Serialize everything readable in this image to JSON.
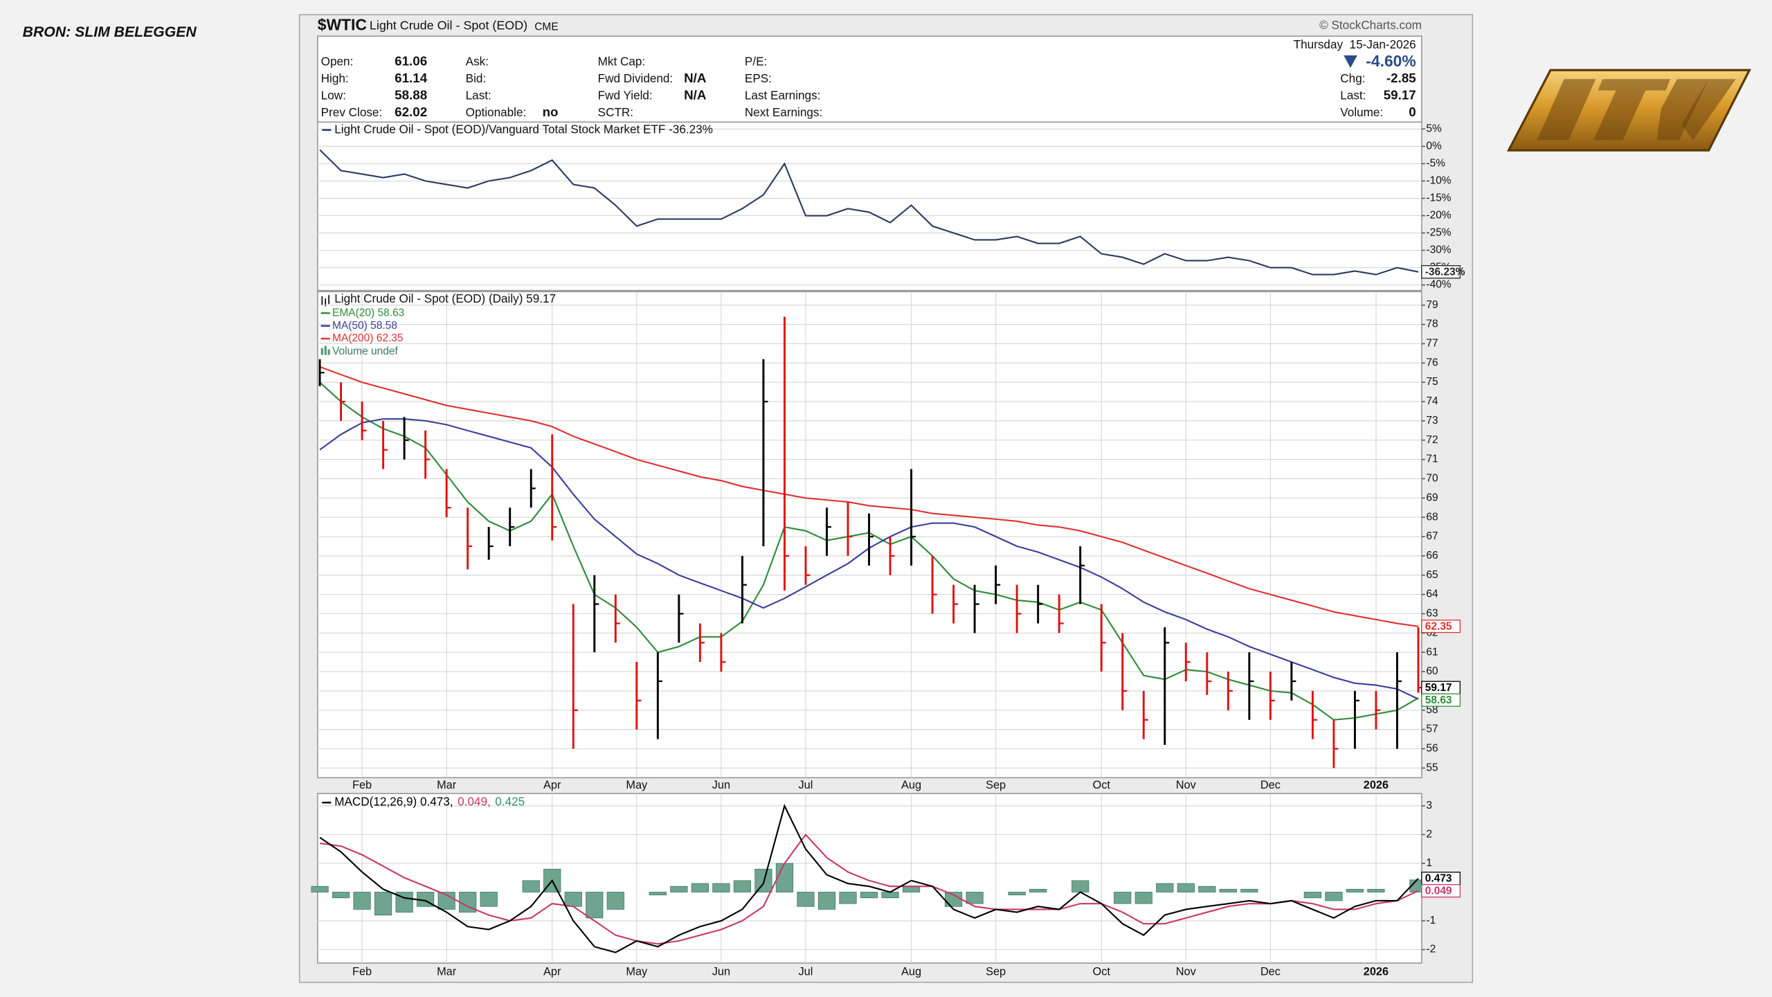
{
  "source": "BRON: SLIM BELEGGEN",
  "header": {
    "symbol": "$WTIC",
    "name": "Light Crude Oil - Spot (EOD)",
    "exchange": "CME",
    "credit": "© StockCharts.com"
  },
  "quote": {
    "columns": [
      [
        {
          "label": "Open:",
          "value": 61.06
        },
        {
          "label": "High:",
          "value": 61.14
        },
        {
          "label": "Low:",
          "value": 58.88
        },
        {
          "label": "Prev Close:",
          "value": 62.02
        }
      ],
      [
        {
          "label": "Ask:"
        },
        {
          "label": "Bid:"
        },
        {
          "label": "Last:"
        },
        {
          "label": "Optionable:",
          "value": "no"
        }
      ],
      [
        {
          "label": "Mkt Cap:"
        },
        {
          "label": "Fwd Dividend:",
          "value": "N/A"
        },
        {
          "label": "Fwd Yield:",
          "value": "N/A"
        },
        {
          "label": "SCTR:"
        }
      ],
      [
        {
          "label": "P/E:"
        },
        {
          "label": "EPS:"
        },
        {
          "label": "Last Earnings:"
        },
        {
          "label": "Next Earnings:"
        }
      ]
    ],
    "date": "Thursday  15-Jan-2026",
    "change_pct": "-4.60%",
    "right": [
      {
        "label": "Chg:",
        "value": -2.85
      },
      {
        "label": "Last:",
        "value": 59.17
      },
      {
        "label": "Volume:",
        "value": 0
      }
    ]
  },
  "chart_data": [
    {
      "type": "line",
      "title": "Light Crude Oil - Spot (EOD)/Vanguard Total Stock Market ETF -36.23%",
      "ylim": [
        -41.6,
        7
      ],
      "yticks": [
        {
          "value": 5,
          "label": "5%"
        },
        {
          "value": 0,
          "label": "0%"
        },
        {
          "value": -5,
          "label": "-5%"
        },
        {
          "value": -10,
          "label": "-10%"
        },
        {
          "value": -15,
          "label": "-15%"
        },
        {
          "value": -20,
          "label": "-20%"
        },
        {
          "value": -25,
          "label": "-25%"
        },
        {
          "value": -30,
          "label": "-30%"
        },
        {
          "value": -35,
          "label": "-35%"
        },
        {
          "value": -40,
          "label": "-40%"
        }
      ],
      "grid": true,
      "series": [
        {
          "color": "#2b3a5e",
          "last_label": "-36.23%",
          "values": [
            -1,
            -7,
            -8,
            -9,
            -8,
            -10,
            -11,
            -12,
            -10,
            -9,
            -7,
            -4,
            -11,
            -12,
            -17,
            -23,
            -21,
            -21,
            -21,
            -21,
            -18,
            -14,
            -5,
            -20,
            -20,
            -18,
            -19,
            -22,
            -17,
            -23,
            -25,
            -27,
            -27,
            -26,
            -28,
            -28,
            -26,
            -31,
            -32,
            -34,
            -31,
            -33,
            -33,
            -32,
            -33,
            -35,
            -35,
            -37,
            -37,
            -36,
            -37,
            -35,
            -36.23
          ]
        }
      ]
    },
    {
      "type": "ohlc",
      "title": "Light Crude Oil - Spot (EOD) (Daily) 59.17",
      "volume_label": "Volume undef",
      "categories": [
        null,
        null,
        "Feb",
        null,
        null,
        null,
        "Mar",
        null,
        null,
        null,
        null,
        "Apr",
        null,
        null,
        null,
        "May",
        null,
        null,
        null,
        "Jun",
        null,
        null,
        null,
        "Jul",
        null,
        null,
        null,
        null,
        "Aug",
        null,
        null,
        null,
        "Sep",
        null,
        null,
        null,
        null,
        "Oct",
        null,
        null,
        null,
        "Nov",
        null,
        null,
        null,
        "Dec",
        null,
        null,
        null,
        null,
        "2026",
        null,
        null
      ],
      "ylim": [
        54.5,
        79.7
      ],
      "yticks": [
        55,
        56,
        57,
        58,
        59,
        60,
        61,
        62,
        63,
        64,
        65,
        66,
        67,
        68,
        69,
        70,
        71,
        72,
        73,
        74,
        75,
        76,
        77,
        78,
        79
      ],
      "grid": true,
      "up_color": "#000000",
      "down_color": "#e01010",
      "ohlc": {
        "high": [
          76.2,
          75,
          74,
          73,
          73.2,
          72.5,
          70.5,
          68.5,
          67.5,
          68.5,
          70.5,
          72.3,
          63.5,
          65,
          64,
          60.5,
          61,
          64,
          62.5,
          62,
          66,
          76.2,
          78.4,
          66.5,
          68.5,
          68.8,
          68.2,
          67,
          70.5,
          66,
          64.5,
          64.5,
          65.5,
          64.5,
          64.5,
          64,
          66.5,
          63.5,
          62,
          59,
          62.3,
          61.5,
          61,
          60,
          61,
          60,
          60.5,
          59,
          57.5,
          59,
          59,
          61,
          62.3
        ],
        "low": [
          74.8,
          73,
          72,
          70.5,
          71,
          70,
          68,
          65.3,
          65.8,
          66.5,
          68.5,
          66.8,
          56,
          61,
          61.5,
          57,
          56.5,
          61.5,
          60.5,
          60,
          62.5,
          66.5,
          64.2,
          64.5,
          66,
          66,
          65.5,
          65,
          65.5,
          63,
          62.5,
          62,
          63.5,
          62,
          62.5,
          62,
          63.5,
          60,
          58,
          56.5,
          56.2,
          59.5,
          58.8,
          58,
          57.5,
          57.5,
          58.5,
          56.5,
          55,
          56,
          57,
          56,
          58.9
        ],
        "close": [
          75.5,
          74,
          72.5,
          71.5,
          72,
          71,
          68.5,
          66.5,
          66.5,
          67.5,
          69.5,
          67.5,
          58,
          63.5,
          62.5,
          58.5,
          59.5,
          63,
          61.5,
          60.5,
          64.5,
          74,
          66,
          65,
          67.5,
          67,
          67,
          66,
          67,
          64,
          63.5,
          63.5,
          64.5,
          63,
          63.5,
          62.5,
          65.5,
          61.5,
          59,
          57.5,
          61.5,
          60.5,
          59.5,
          59,
          59.5,
          58.5,
          59.5,
          57.5,
          56,
          58.5,
          58,
          59.5,
          59.17
        ]
      },
      "series": [
        {
          "name": "EMA(20) 58.63",
          "color": "#2e8b3a",
          "show_last": true,
          "values": [
            75,
            74,
            73.2,
            72.6,
            72.2,
            71.6,
            70.2,
            68.8,
            67.8,
            67.3,
            67.8,
            69.2,
            66.5,
            64,
            63.3,
            62.3,
            61,
            61.3,
            61.8,
            61.8,
            62.6,
            64.5,
            67.5,
            67.3,
            66.8,
            67,
            67.2,
            66.6,
            67,
            66,
            64.8,
            64.2,
            64,
            63.7,
            63.6,
            63.2,
            63.6,
            63.2,
            61.5,
            59.8,
            59.6,
            60.1,
            60,
            59.6,
            59.3,
            59,
            58.9,
            58.3,
            57.5,
            57.6,
            57.8,
            58,
            58.63
          ]
        },
        {
          "name": "MA(50) 58.58",
          "color": "#3b3f9c",
          "show_last": false,
          "values": [
            71.5,
            72.3,
            72.9,
            73.1,
            73.1,
            73,
            72.8,
            72.5,
            72.2,
            71.9,
            71.6,
            70.6,
            69.2,
            67.9,
            67,
            66.1,
            65.6,
            65,
            64.6,
            64.2,
            63.8,
            63.3,
            63.8,
            64.4,
            65,
            65.6,
            66.4,
            67,
            67.5,
            67.7,
            67.7,
            67.5,
            67,
            66.5,
            66.2,
            65.8,
            65.4,
            64.9,
            64.3,
            63.6,
            63.1,
            62.7,
            62.2,
            61.8,
            61.3,
            60.9,
            60.5,
            60.1,
            59.7,
            59.4,
            59.3,
            59.1,
            58.58
          ]
        },
        {
          "name": "MA(200) 62.35",
          "color": "#e03030",
          "show_last": true,
          "values": [
            75.8,
            75.4,
            75,
            74.7,
            74.4,
            74.1,
            73.8,
            73.6,
            73.4,
            73.2,
            73,
            72.7,
            72.2,
            71.8,
            71.4,
            71,
            70.7,
            70.4,
            70.1,
            69.9,
            69.6,
            69.4,
            69.2,
            69,
            68.9,
            68.8,
            68.6,
            68.5,
            68.4,
            68.2,
            68.1,
            68,
            67.9,
            67.8,
            67.6,
            67.5,
            67.3,
            67,
            66.7,
            66.3,
            65.9,
            65.5,
            65.1,
            64.7,
            64.3,
            64,
            63.7,
            63.4,
            63.1,
            62.9,
            62.7,
            62.5,
            62.35
          ]
        }
      ]
    },
    {
      "type": "macd",
      "legend": [
        {
          "text": "MACD(12,26,9) 0.473,",
          "color": "#000000"
        },
        {
          "text": "0.049,",
          "color": "#c8386a"
        },
        {
          "text": "0.425",
          "color": "#3a8a70"
        }
      ],
      "categories": [
        null,
        null,
        "Feb",
        null,
        null,
        null,
        "Mar",
        null,
        null,
        null,
        null,
        "Apr",
        null,
        null,
        null,
        "May",
        null,
        null,
        null,
        "Jun",
        null,
        null,
        null,
        "Jul",
        null,
        null,
        null,
        null,
        "Aug",
        null,
        null,
        null,
        "Sep",
        null,
        null,
        null,
        null,
        "Oct",
        null,
        null,
        null,
        "Nov",
        null,
        null,
        null,
        "Dec",
        null,
        null,
        null,
        null,
        "2026",
        null,
        null
      ],
      "ylim": [
        -2.47,
        3.43
      ],
      "yticks": [
        3,
        2,
        1,
        -1,
        -2
      ],
      "grid": true,
      "series": [
        {
          "color": "#000000",
          "show_last": true,
          "values": [
            1.9,
            1.4,
            0.7,
            0.1,
            -0.2,
            -0.3,
            -0.7,
            -1.2,
            -1.3,
            -1,
            -0.5,
            0.4,
            -1,
            -1.9,
            -2.1,
            -1.7,
            -1.9,
            -1.5,
            -1.2,
            -1,
            -0.6,
            0.3,
            3,
            1.5,
            0.6,
            0.3,
            0.2,
            0,
            0.4,
            0.2,
            -0.6,
            -0.9,
            -0.6,
            -0.7,
            -0.5,
            -0.6,
            0,
            -0.4,
            -1.1,
            -1.5,
            -0.8,
            -0.6,
            -0.5,
            -0.4,
            -0.3,
            -0.4,
            -0.3,
            -0.6,
            -0.9,
            -0.5,
            -0.3,
            -0.3,
            0.473
          ]
        },
        {
          "color": "#c8386a",
          "show_last": true,
          "values": [
            1.7,
            1.6,
            1.3,
            0.9,
            0.5,
            0.2,
            -0.1,
            -0.5,
            -0.8,
            -1,
            -0.9,
            -0.4,
            -0.5,
            -1,
            -1.5,
            -1.7,
            -1.8,
            -1.7,
            -1.5,
            -1.3,
            -1,
            -0.5,
            1,
            2,
            1.2,
            0.7,
            0.4,
            0.2,
            0.2,
            0.2,
            -0.1,
            -0.5,
            -0.6,
            -0.6,
            -0.6,
            -0.6,
            -0.4,
            -0.4,
            -0.7,
            -1.1,
            -1.1,
            -0.9,
            -0.7,
            -0.5,
            -0.4,
            -0.4,
            -0.3,
            -0.4,
            -0.6,
            -0.6,
            -0.4,
            -0.3,
            0.049
          ]
        }
      ],
      "histogram": {
        "color": "#6fa590",
        "values": [
          0.2,
          -0.2,
          -0.6,
          -0.8,
          -0.7,
          -0.5,
          -0.6,
          -0.7,
          -0.5,
          0,
          0.4,
          0.8,
          -0.5,
          -0.9,
          -0.6,
          0,
          -0.1,
          0.2,
          0.3,
          0.3,
          0.4,
          0.8,
          1,
          -0.5,
          -0.6,
          -0.4,
          -0.2,
          -0.2,
          0.2,
          0,
          -0.5,
          -0.4,
          0,
          -0.1,
          0.1,
          0,
          0.4,
          0,
          -0.4,
          -0.4,
          0.3,
          0.3,
          0.2,
          0.1,
          0.1,
          0,
          0,
          -0.2,
          -0.3,
          0.1,
          0.1,
          0,
          0.425
        ]
      }
    }
  ]
}
